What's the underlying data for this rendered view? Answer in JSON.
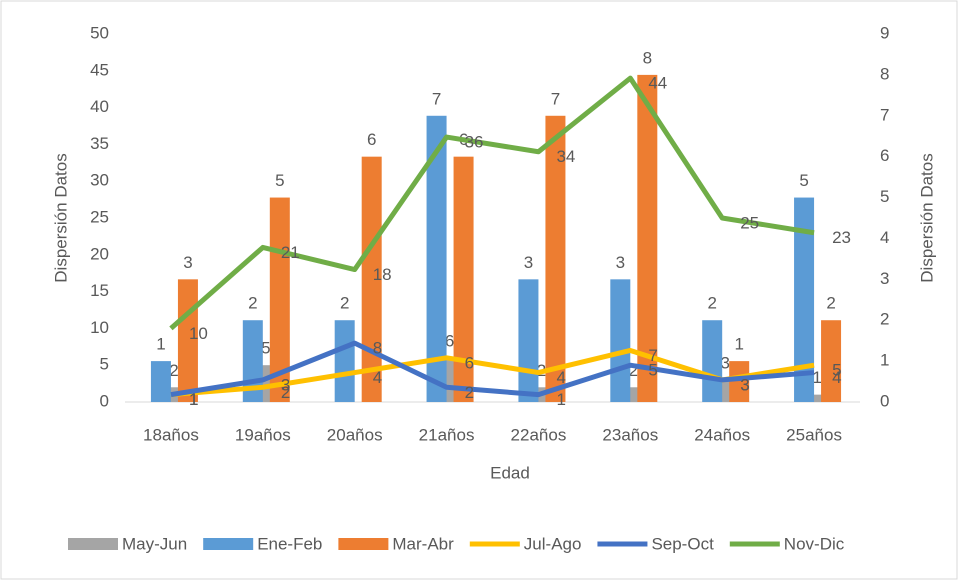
{
  "chart_data": {
    "type": "bar-line",
    "categories": [
      "18años",
      "19años",
      "20años",
      "21años",
      "22años",
      "23años",
      "24años",
      "25años"
    ],
    "xlabel": "Edad",
    "ylabel": "Dispersión Datos",
    "y2label": "Dispersión Datos",
    "ylim": [
      0,
      50
    ],
    "yticks": [
      0,
      5,
      10,
      15,
      20,
      25,
      30,
      35,
      40,
      45,
      50
    ],
    "y2lim": [
      0,
      9
    ],
    "y2ticks": [
      0,
      1,
      2,
      3,
      4,
      5,
      6,
      7,
      8,
      9
    ],
    "legend": "bottom",
    "series": [
      {
        "name": "May-Jun",
        "type": "bar",
        "color": "#a5a5a5",
        "values": [
          2,
          5,
          null,
          6,
          2,
          2,
          3,
          1
        ]
      },
      {
        "name": "Ene-Feb",
        "type": "bar",
        "axis": "y2",
        "color": "#5b9bd5",
        "values": [
          1,
          2,
          2,
          7,
          3,
          3,
          2,
          5
        ]
      },
      {
        "name": "Mar-Abr",
        "type": "bar",
        "axis": "y2",
        "color": "#ed7d31",
        "values": [
          3,
          5,
          6,
          6,
          7,
          8,
          1,
          2
        ]
      },
      {
        "name": "Jul-Ago",
        "type": "line",
        "color": "#ffc000",
        "values": [
          1,
          2,
          4,
          6,
          4,
          7,
          3,
          5
        ]
      },
      {
        "name": "Sep-Oct",
        "type": "line",
        "color": "#4472c4",
        "values": [
          1,
          3,
          8,
          2,
          1,
          5,
          3,
          4
        ]
      },
      {
        "name": "Nov-Dic",
        "type": "line",
        "color": "#70ad47",
        "values": [
          10,
          21,
          18,
          36,
          34,
          44,
          25,
          23
        ]
      }
    ]
  }
}
